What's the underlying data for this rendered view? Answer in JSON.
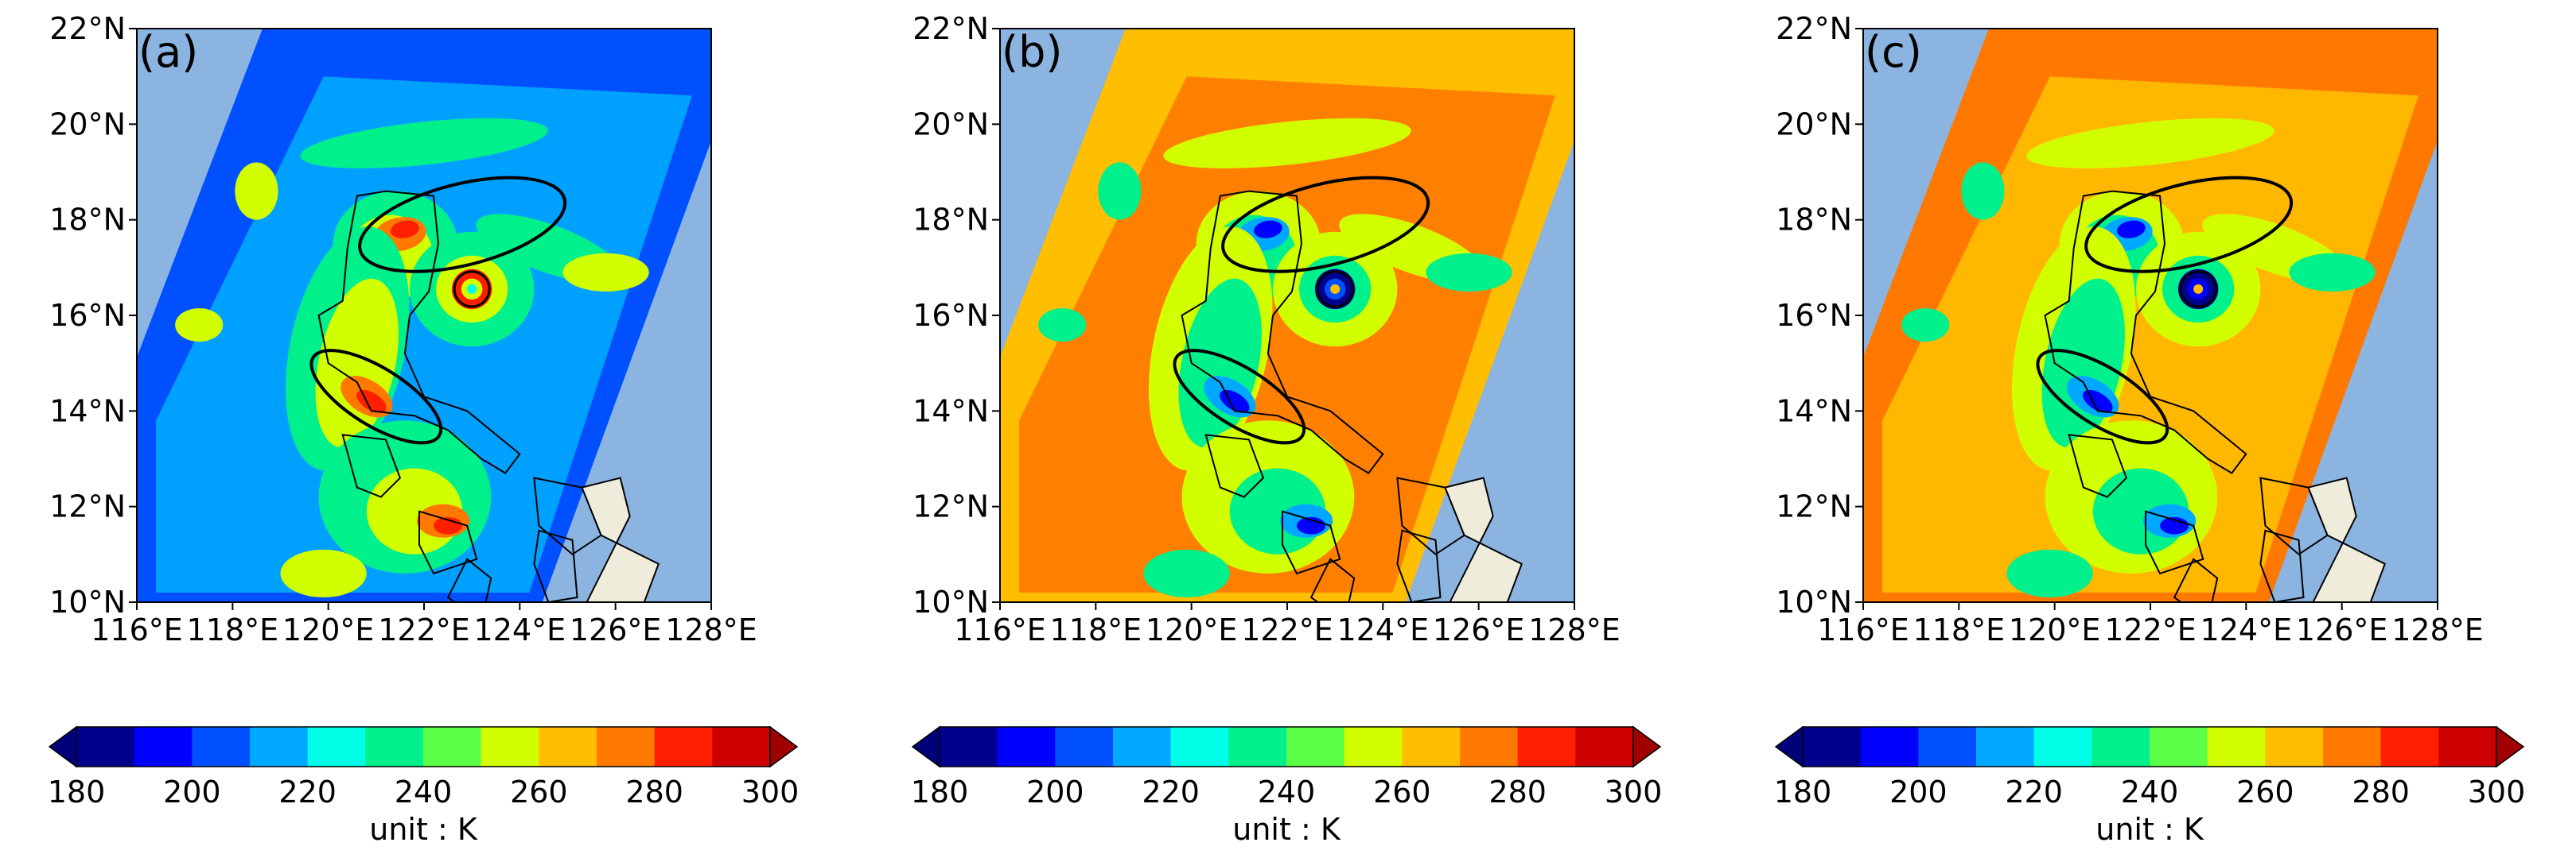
{
  "figure": {
    "panels": [
      {
        "label": "(a)",
        "scheme": "cold",
        "lat_ticks": [
          "22°N",
          "20°N",
          "18°N",
          "16°N",
          "14°N",
          "12°N",
          "10°N"
        ],
        "lon_ticks": [
          "116°E",
          "118°E",
          "120°E",
          "122°E",
          "124°E",
          "126°E",
          "128°E"
        ],
        "colorbar": {
          "ticks": [
            "180",
            "200",
            "220",
            "240",
            "260",
            "280",
            "300"
          ],
          "unit": "unit : K"
        }
      },
      {
        "label": "(b)",
        "scheme": "warm",
        "lat_ticks": [
          "22°N",
          "20°N",
          "18°N",
          "16°N",
          "14°N",
          "12°N",
          "10°N"
        ],
        "lon_ticks": [
          "116°E",
          "118°E",
          "120°E",
          "122°E",
          "124°E",
          "126°E",
          "128°E"
        ],
        "colorbar": {
          "ticks": [
            "180",
            "200",
            "220",
            "240",
            "260",
            "280",
            "300"
          ],
          "unit": "unit : K"
        }
      },
      {
        "label": "(c)",
        "scheme": "warmer",
        "lat_ticks": [
          "22°N",
          "20°N",
          "18°N",
          "16°N",
          "14°N",
          "12°N",
          "10°N"
        ],
        "lon_ticks": [
          "116°E",
          "118°E",
          "120°E",
          "122°E",
          "124°E",
          "126°E",
          "128°E"
        ],
        "colorbar": {
          "ticks": [
            "180",
            "200",
            "220",
            "240",
            "260",
            "280",
            "300"
          ],
          "unit": "unit : K"
        }
      }
    ],
    "map_extent": {
      "lon": [
        116,
        128
      ],
      "lat": [
        10,
        22
      ]
    },
    "colorbar_levels": [
      180,
      190,
      200,
      210,
      220,
      230,
      240,
      250,
      260,
      270,
      280,
      290,
      300
    ],
    "colors": {
      "ocean_no_data": "#8cb4e0",
      "land": "#efecdc",
      "scale": [
        "#00008f",
        "#0000ff",
        "#0050ff",
        "#00a8ff",
        "#00ffe6",
        "#00f08c",
        "#5aff46",
        "#d2ff00",
        "#ffbe00",
        "#ff7800",
        "#ff1e00",
        "#cc0000"
      ],
      "extend_low": "#00007a",
      "extend_high": "#a00000"
    },
    "annotations": {
      "ellipses": [
        {
          "lon": 122.8,
          "lat": 17.9,
          "rx_deg": 2.2,
          "ry_deg": 0.85,
          "rot": -14
        },
        {
          "lon": 121.0,
          "lat": 14.3,
          "rx_deg": 1.55,
          "ry_deg": 0.6,
          "rot": 32
        }
      ],
      "eye": {
        "lon": 123.0,
        "lat": 16.55
      }
    }
  }
}
